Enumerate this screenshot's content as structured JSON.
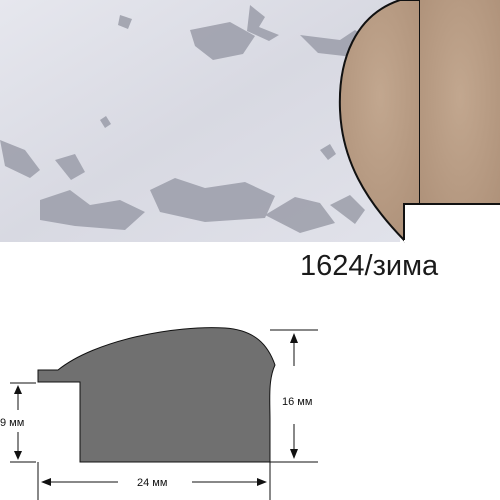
{
  "product": {
    "code": "1624/зима"
  },
  "profile_drawing": {
    "height_label": "16 мм",
    "rebate_label": "9 мм",
    "width_label": "24 мм"
  },
  "colors": {
    "surface_base": "#dcdde6",
    "surface_speckle": "#9a9ca8",
    "wood_cut": "#b89c84",
    "profile_fill": "#707070",
    "outline": "#111111"
  }
}
